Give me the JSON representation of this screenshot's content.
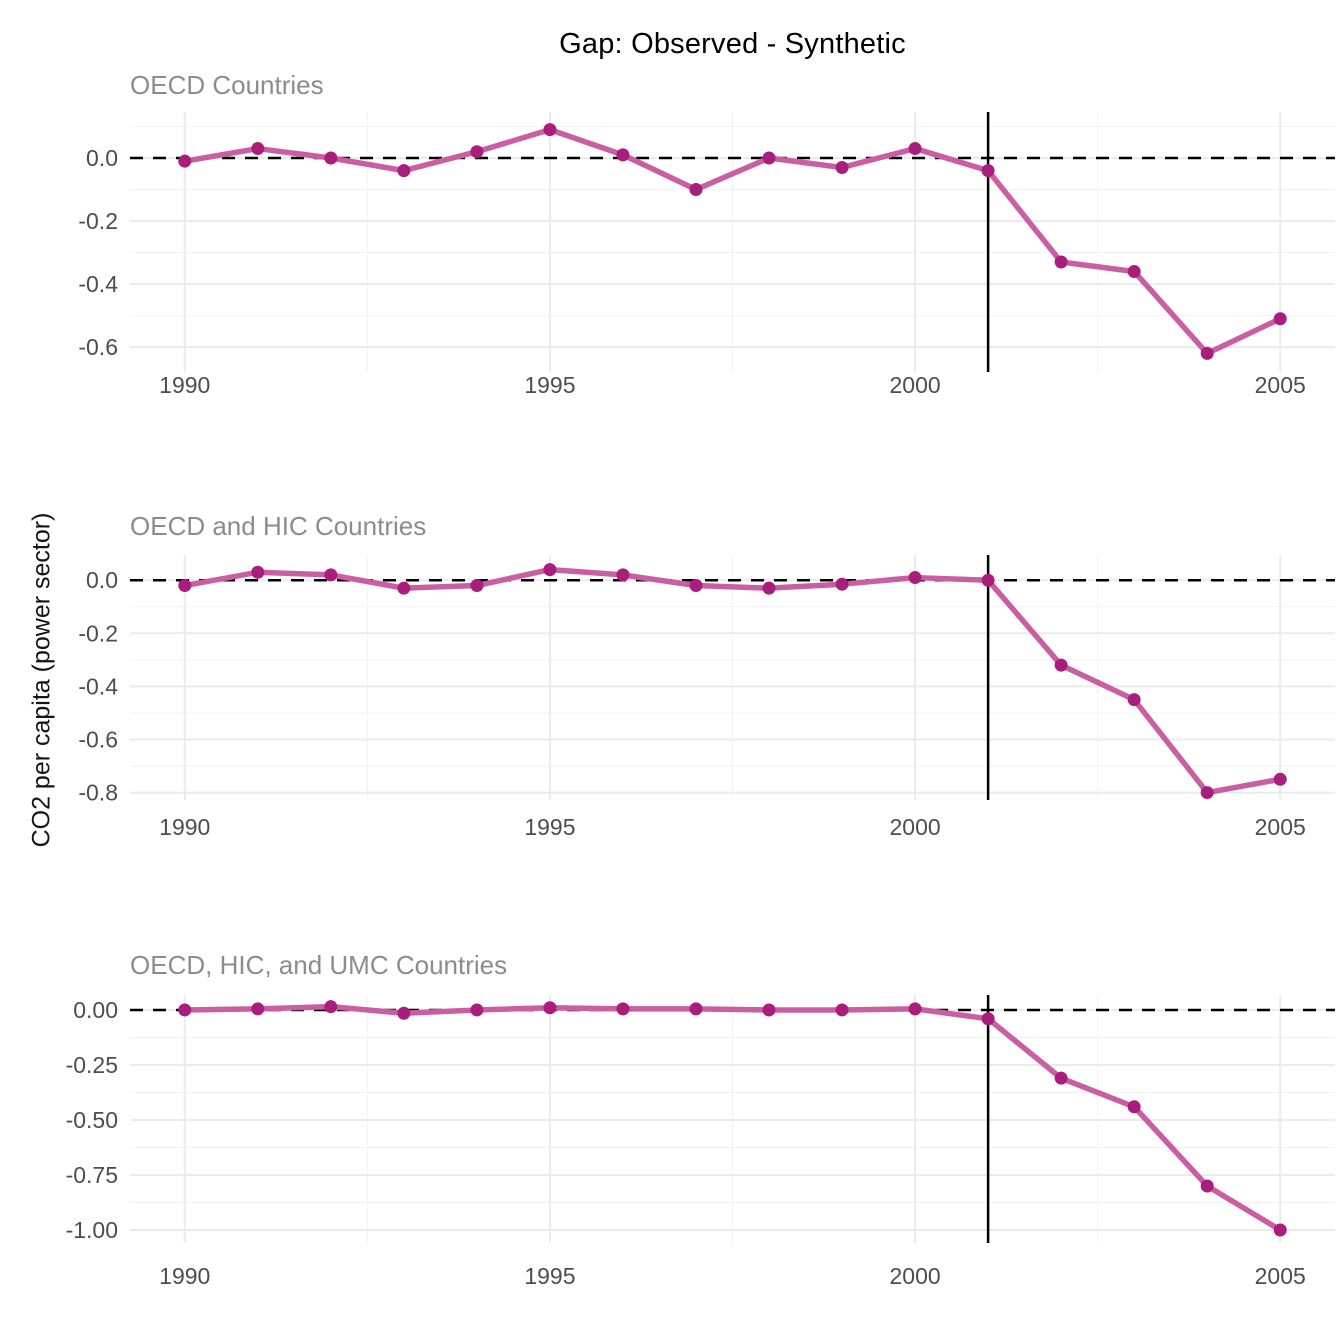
{
  "title": "Gap: Observed - Synthetic",
  "ylabel": "CO2 per capita (power sector)",
  "colors": {
    "line": "#C95FA2",
    "point": "#A91E7C",
    "grid_major": "#EBEBEB",
    "grid_minor": "#F2F2F2",
    "tick_label": "#4D4D4D",
    "subtitle": "#8C8C8C",
    "title": "#000000",
    "reference_line": "#000000"
  },
  "chart_data": [
    {
      "type": "line",
      "title": "OECD Countries",
      "x": [
        1990,
        1991,
        1992,
        1993,
        1994,
        1995,
        1996,
        1997,
        1998,
        1999,
        2000,
        2001,
        2002,
        2003,
        2004,
        2005
      ],
      "values": [
        -0.01,
        0.03,
        0.0,
        -0.04,
        0.02,
        0.09,
        0.01,
        -0.1,
        0.0,
        -0.03,
        0.03,
        -0.04,
        -0.33,
        -0.36,
        -0.62,
        -0.51
      ],
      "xticks": [
        1990,
        1995,
        2000,
        2005
      ],
      "xtick_labels": [
        "1990",
        "1995",
        "2000",
        "2005"
      ],
      "yticks": [
        0.0,
        -0.2,
        -0.4,
        -0.6
      ],
      "ytick_labels": [
        "0.0",
        "-0.2",
        "-0.4",
        "-0.6"
      ],
      "ylim": [
        -0.679,
        0.146
      ],
      "xlim": [
        1989.25,
        2005.75
      ],
      "hline_y": 0,
      "vline_x": 2001,
      "grid": "on",
      "legend": "none"
    },
    {
      "type": "line",
      "title": "OECD and HIC Countries",
      "x": [
        1990,
        1991,
        1992,
        1993,
        1994,
        1995,
        1996,
        1997,
        1998,
        1999,
        2000,
        2001,
        2002,
        2003,
        2004,
        2005
      ],
      "values": [
        -0.02,
        0.03,
        0.02,
        -0.03,
        -0.02,
        0.04,
        0.02,
        -0.02,
        -0.03,
        -0.015,
        0.01,
        0.0,
        -0.32,
        -0.45,
        -0.8,
        -0.75
      ],
      "xticks": [
        1990,
        1995,
        2000,
        2005
      ],
      "xtick_labels": [
        "1990",
        "1995",
        "2000",
        "2005"
      ],
      "yticks": [
        0.0,
        -0.2,
        -0.4,
        -0.6,
        -0.8
      ],
      "ytick_labels": [
        "0.0",
        "-0.2",
        "-0.4",
        "-0.6",
        "-0.8"
      ],
      "ylim": [
        -0.828,
        0.095
      ],
      "xlim": [
        1989.25,
        2005.75
      ],
      "hline_y": 0,
      "vline_x": 2001,
      "grid": "on",
      "legend": "none"
    },
    {
      "type": "line",
      "title": "OECD, HIC, and UMC Countries",
      "x": [
        1990,
        1991,
        1992,
        1993,
        1994,
        1995,
        1996,
        1997,
        1998,
        1999,
        2000,
        2001,
        2002,
        2003,
        2004,
        2005
      ],
      "values": [
        0.0,
        0.005,
        0.015,
        -0.015,
        0.0,
        0.01,
        0.005,
        0.005,
        0.0,
        0.0,
        0.005,
        -0.04,
        -0.31,
        -0.44,
        -0.8,
        -1.0
      ],
      "xticks": [
        1990,
        1995,
        2000,
        2005
      ],
      "xtick_labels": [
        "1990",
        "1995",
        "2000",
        "2005"
      ],
      "yticks": [
        0.0,
        -0.25,
        -0.5,
        -0.75,
        -1.0
      ],
      "ytick_labels": [
        "0.00",
        "-0.25",
        "-0.50",
        "-0.75",
        "-1.00"
      ],
      "ylim": [
        -1.059,
        0.068
      ],
      "xlim": [
        1989.25,
        2005.75
      ],
      "hline_y": 0,
      "vline_x": 2001,
      "grid": "on",
      "legend": "none"
    }
  ]
}
